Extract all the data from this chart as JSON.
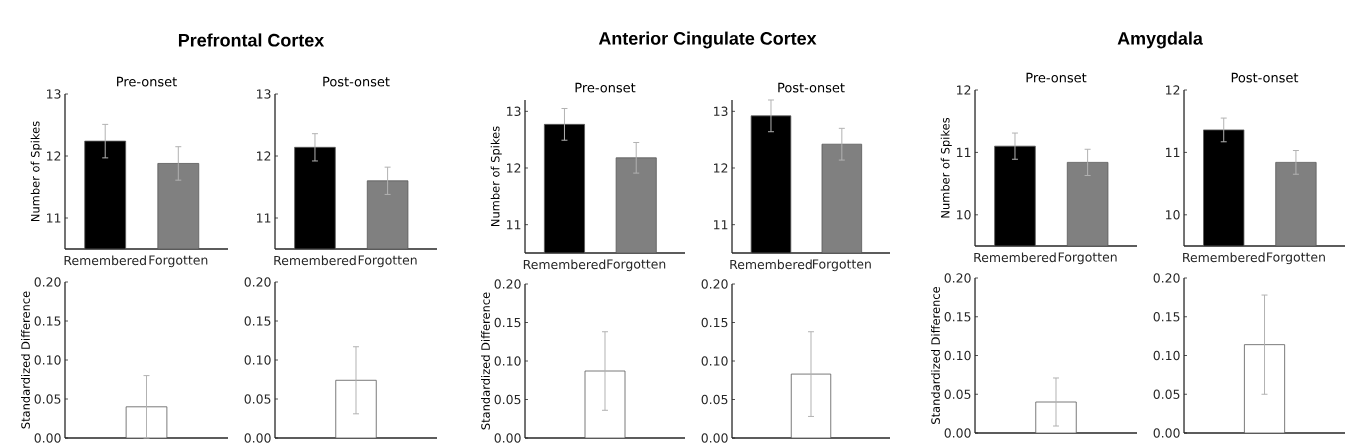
{
  "chart_data": [
    {
      "type": "other",
      "title": "Prefrontal Cortex"
    },
    {
      "type": "bar",
      "title": "Pre-onset",
      "ylabel": "Number of Spikes",
      "categories": [
        "Remembered",
        "Forgotten"
      ],
      "values": [
        12.24,
        11.88
      ],
      "errors": [
        0.27,
        0.27
      ],
      "colors": [
        "#000000",
        "#808080"
      ],
      "ylim": [
        10.5,
        13
      ],
      "yticks": [
        11,
        12,
        13
      ]
    },
    {
      "type": "bar",
      "title": "Post-onset",
      "categories": [
        "Remembered",
        "Forgotten"
      ],
      "values": [
        12.14,
        11.6
      ],
      "errors": [
        0.22,
        0.22
      ],
      "colors": [
        "#000000",
        "#808080"
      ],
      "ylim": [
        10.5,
        13
      ],
      "yticks": [
        11,
        12,
        13
      ]
    },
    {
      "type": "bar",
      "ylabel": "Standardized Difference",
      "categories": [
        null
      ],
      "values": [
        0.04
      ],
      "errors": [
        0.04
      ],
      "color": "#ffffff",
      "ylim": [
        0,
        0.2
      ],
      "yticks": [
        {
          "value": 0,
          "label": "0.00"
        },
        {
          "value": 0.05,
          "label": "0.05"
        },
        {
          "value": 0.1,
          "label": "0.10"
        },
        {
          "value": 0.15,
          "label": "0.15"
        },
        {
          "value": 0.2,
          "label": "0.20"
        }
      ],
      "tick_labels": "y"
    },
    {
      "type": "bar",
      "categories": [
        null
      ],
      "values": [
        0.074
      ],
      "errors": [
        0.043
      ],
      "color": "#ffffff",
      "ylim": [
        0,
        0.2
      ],
      "yticks": [
        {
          "value": 0,
          "label": "0.00"
        },
        {
          "value": 0.05,
          "label": "0.05"
        },
        {
          "value": 0.1,
          "label": "0.10"
        },
        {
          "value": 0.15,
          "label": "0.15"
        },
        {
          "value": 0.2,
          "label": "0.20"
        }
      ],
      "tick_labels": "y"
    },
    {
      "type": "other",
      "title": "Anterior Cingulate Cortex"
    },
    {
      "type": "bar",
      "title": "Pre-onset",
      "ylabel": "Number of Spikes",
      "categories": [
        "Remembered",
        "Forgotten"
      ],
      "values": [
        12.77,
        12.18
      ],
      "errors": [
        0.28,
        0.27
      ],
      "colors": [
        "#000000",
        "#808080"
      ],
      "ylim": [
        10.5,
        13.2
      ],
      "yticks": [
        11,
        12,
        13
      ]
    },
    {
      "type": "bar",
      "title": "Post-onset",
      "categories": [
        "Remembered",
        "Forgotten"
      ],
      "values": [
        12.92,
        12.42
      ],
      "errors": [
        0.28,
        0.28
      ],
      "colors": [
        "#000000",
        "#808080"
      ],
      "ylim": [
        10.5,
        13.2
      ],
      "yticks": [
        11,
        12,
        13
      ]
    },
    {
      "type": "bar",
      "ylabel": "Standardized Difference",
      "categories": [
        null
      ],
      "values": [
        0.087
      ],
      "errors": [
        0.051
      ],
      "color": "#ffffff",
      "ylim": [
        0,
        0.2
      ],
      "yticks": [
        {
          "value": 0,
          "label": "0.00"
        },
        {
          "value": 0.05,
          "label": "0.05"
        },
        {
          "value": 0.1,
          "label": "0.10"
        },
        {
          "value": 0.15,
          "label": "0.15"
        },
        {
          "value": 0.2,
          "label": "0.20"
        }
      ],
      "tick_labels": "y"
    },
    {
      "type": "bar",
      "categories": [
        null
      ],
      "values": [
        0.083
      ],
      "errors": [
        0.055
      ],
      "color": "#ffffff",
      "ylim": [
        0,
        0.2
      ],
      "yticks": [
        {
          "value": 0,
          "label": "0.00"
        },
        {
          "value": 0.05,
          "label": "0.05"
        },
        {
          "value": 0.1,
          "label": "0.10"
        },
        {
          "value": 0.15,
          "label": "0.15"
        },
        {
          "value": 0.2,
          "label": "0.20"
        }
      ],
      "tick_labels": "y"
    },
    {
      "type": "other",
      "title": "Amygdala"
    },
    {
      "type": "bar",
      "title": "Pre-onset",
      "ylabel": "Number of Spikes",
      "categories": [
        "Remembered",
        "Forgotten"
      ],
      "values": [
        11.1,
        10.84
      ],
      "errors": [
        0.21,
        0.21
      ],
      "colors": [
        "#000000",
        "#808080"
      ],
      "ylim": [
        9.5,
        12
      ],
      "yticks": [
        10,
        11,
        12
      ]
    },
    {
      "type": "bar",
      "title": "Post-onset",
      "categories": [
        "Remembered",
        "Forgotten"
      ],
      "values": [
        11.36,
        10.84
      ],
      "errors": [
        0.19,
        0.19
      ],
      "colors": [
        "#000000",
        "#808080"
      ],
      "ylim": [
        9.5,
        12
      ],
      "yticks": [
        10,
        11,
        12
      ]
    },
    {
      "type": "bar",
      "ylabel": "Standardized Difference",
      "categories": [
        null
      ],
      "values": [
        0.04
      ],
      "errors": [
        0.031
      ],
      "color": "#ffffff",
      "ylim": [
        0,
        0.2
      ],
      "yticks": [
        {
          "value": 0,
          "label": "0.00"
        },
        {
          "value": 0.05,
          "label": "0.05"
        },
        {
          "value": 0.1,
          "label": "0.10"
        },
        {
          "value": 0.15,
          "label": "0.15"
        },
        {
          "value": 0.2,
          "label": "0.20"
        }
      ],
      "tick_labels": "y"
    },
    {
      "type": "bar",
      "categories": [
        null
      ],
      "values": [
        0.114
      ],
      "errors": [
        0.064
      ],
      "color": "#ffffff",
      "ylim": [
        0,
        0.2
      ],
      "yticks": [
        {
          "value": 0,
          "label": "0.00"
        },
        {
          "value": 0.05,
          "label": "0.05"
        },
        {
          "value": 0.1,
          "label": "0.10"
        },
        {
          "value": 0.15,
          "label": "0.15"
        },
        {
          "value": 0.2,
          "label": "0.20"
        }
      ],
      "tick_labels": "y"
    }
  ]
}
